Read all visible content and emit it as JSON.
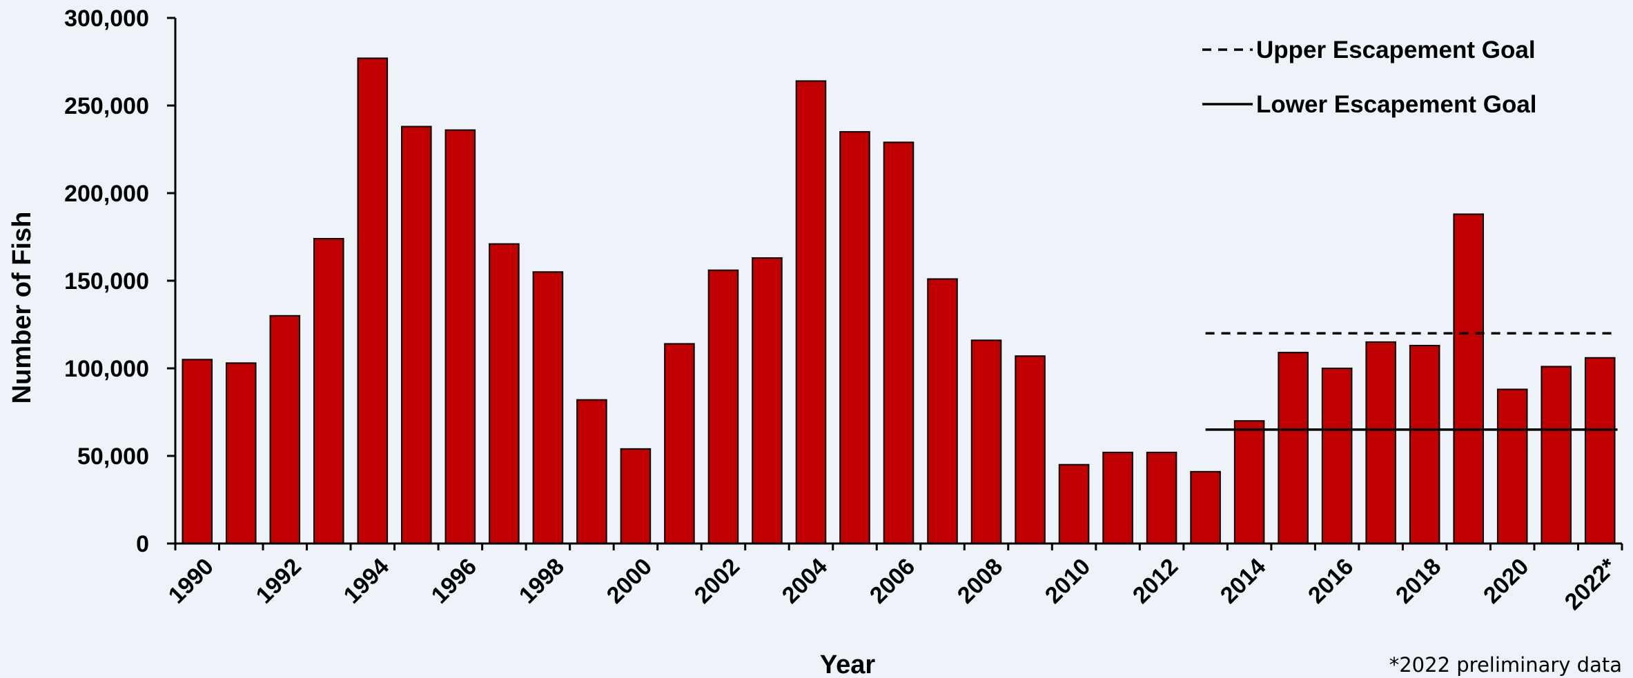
{
  "chart_data": {
    "type": "bar",
    "title": "",
    "xlabel": "Year",
    "ylabel": "Number of Fish",
    "ylim": [
      0,
      300000
    ],
    "yticks": [
      0,
      50000,
      100000,
      150000,
      200000,
      250000,
      300000
    ],
    "ytick_labels": [
      "0",
      "50,000",
      "100,000",
      "150,000",
      "200,000",
      "250,000",
      "300,000"
    ],
    "categories": [
      "1990",
      "1991",
      "1992",
      "1993",
      "1994",
      "1995",
      "1996",
      "1997",
      "1998",
      "1999",
      "2000",
      "2001",
      "2002",
      "2003",
      "2004",
      "2005",
      "2006",
      "2007",
      "2008",
      "2009",
      "2010",
      "2011",
      "2012",
      "2013",
      "2014",
      "2015",
      "2016",
      "2017",
      "2018",
      "2019",
      "2020",
      "2021",
      "2022"
    ],
    "x_tick_labels": [
      "1990",
      "",
      "1992",
      "",
      "1994",
      "",
      "1996",
      "",
      "1998",
      "",
      "2000",
      "",
      "2002",
      "",
      "2004",
      "",
      "2006",
      "",
      "2008",
      "",
      "2010",
      "",
      "2012",
      "",
      "2014",
      "",
      "2016",
      "",
      "2018",
      "",
      "2020",
      "",
      "2022*"
    ],
    "series": [
      {
        "values": [
          105000,
          103000,
          130000,
          174000,
          277000,
          238000,
          236000,
          171000,
          155000,
          82000,
          54000,
          114000,
          156000,
          163000,
          264000,
          235000,
          229000,
          151000,
          116000,
          107000,
          45000,
          52000,
          52000,
          41000,
          70000,
          109000,
          100000,
          115000,
          113000,
          188000,
          88000,
          101000,
          106000
        ],
        "color": "#c00000"
      }
    ],
    "reference_lines": [
      {
        "name": "Upper Escapement Goal",
        "value": 120000,
        "from_category": "2013",
        "to_category": "2022",
        "style": "dashed"
      },
      {
        "name": "Lower Escapement Goal",
        "value": 65000,
        "from_category": "2013",
        "to_category": "2022",
        "style": "solid"
      }
    ],
    "legend": {
      "position": "top-right",
      "entries": [
        "Upper Escapement Goal",
        "Lower Escapement Goal"
      ]
    },
    "grid": false,
    "footnote": "*2022 preliminary data"
  }
}
